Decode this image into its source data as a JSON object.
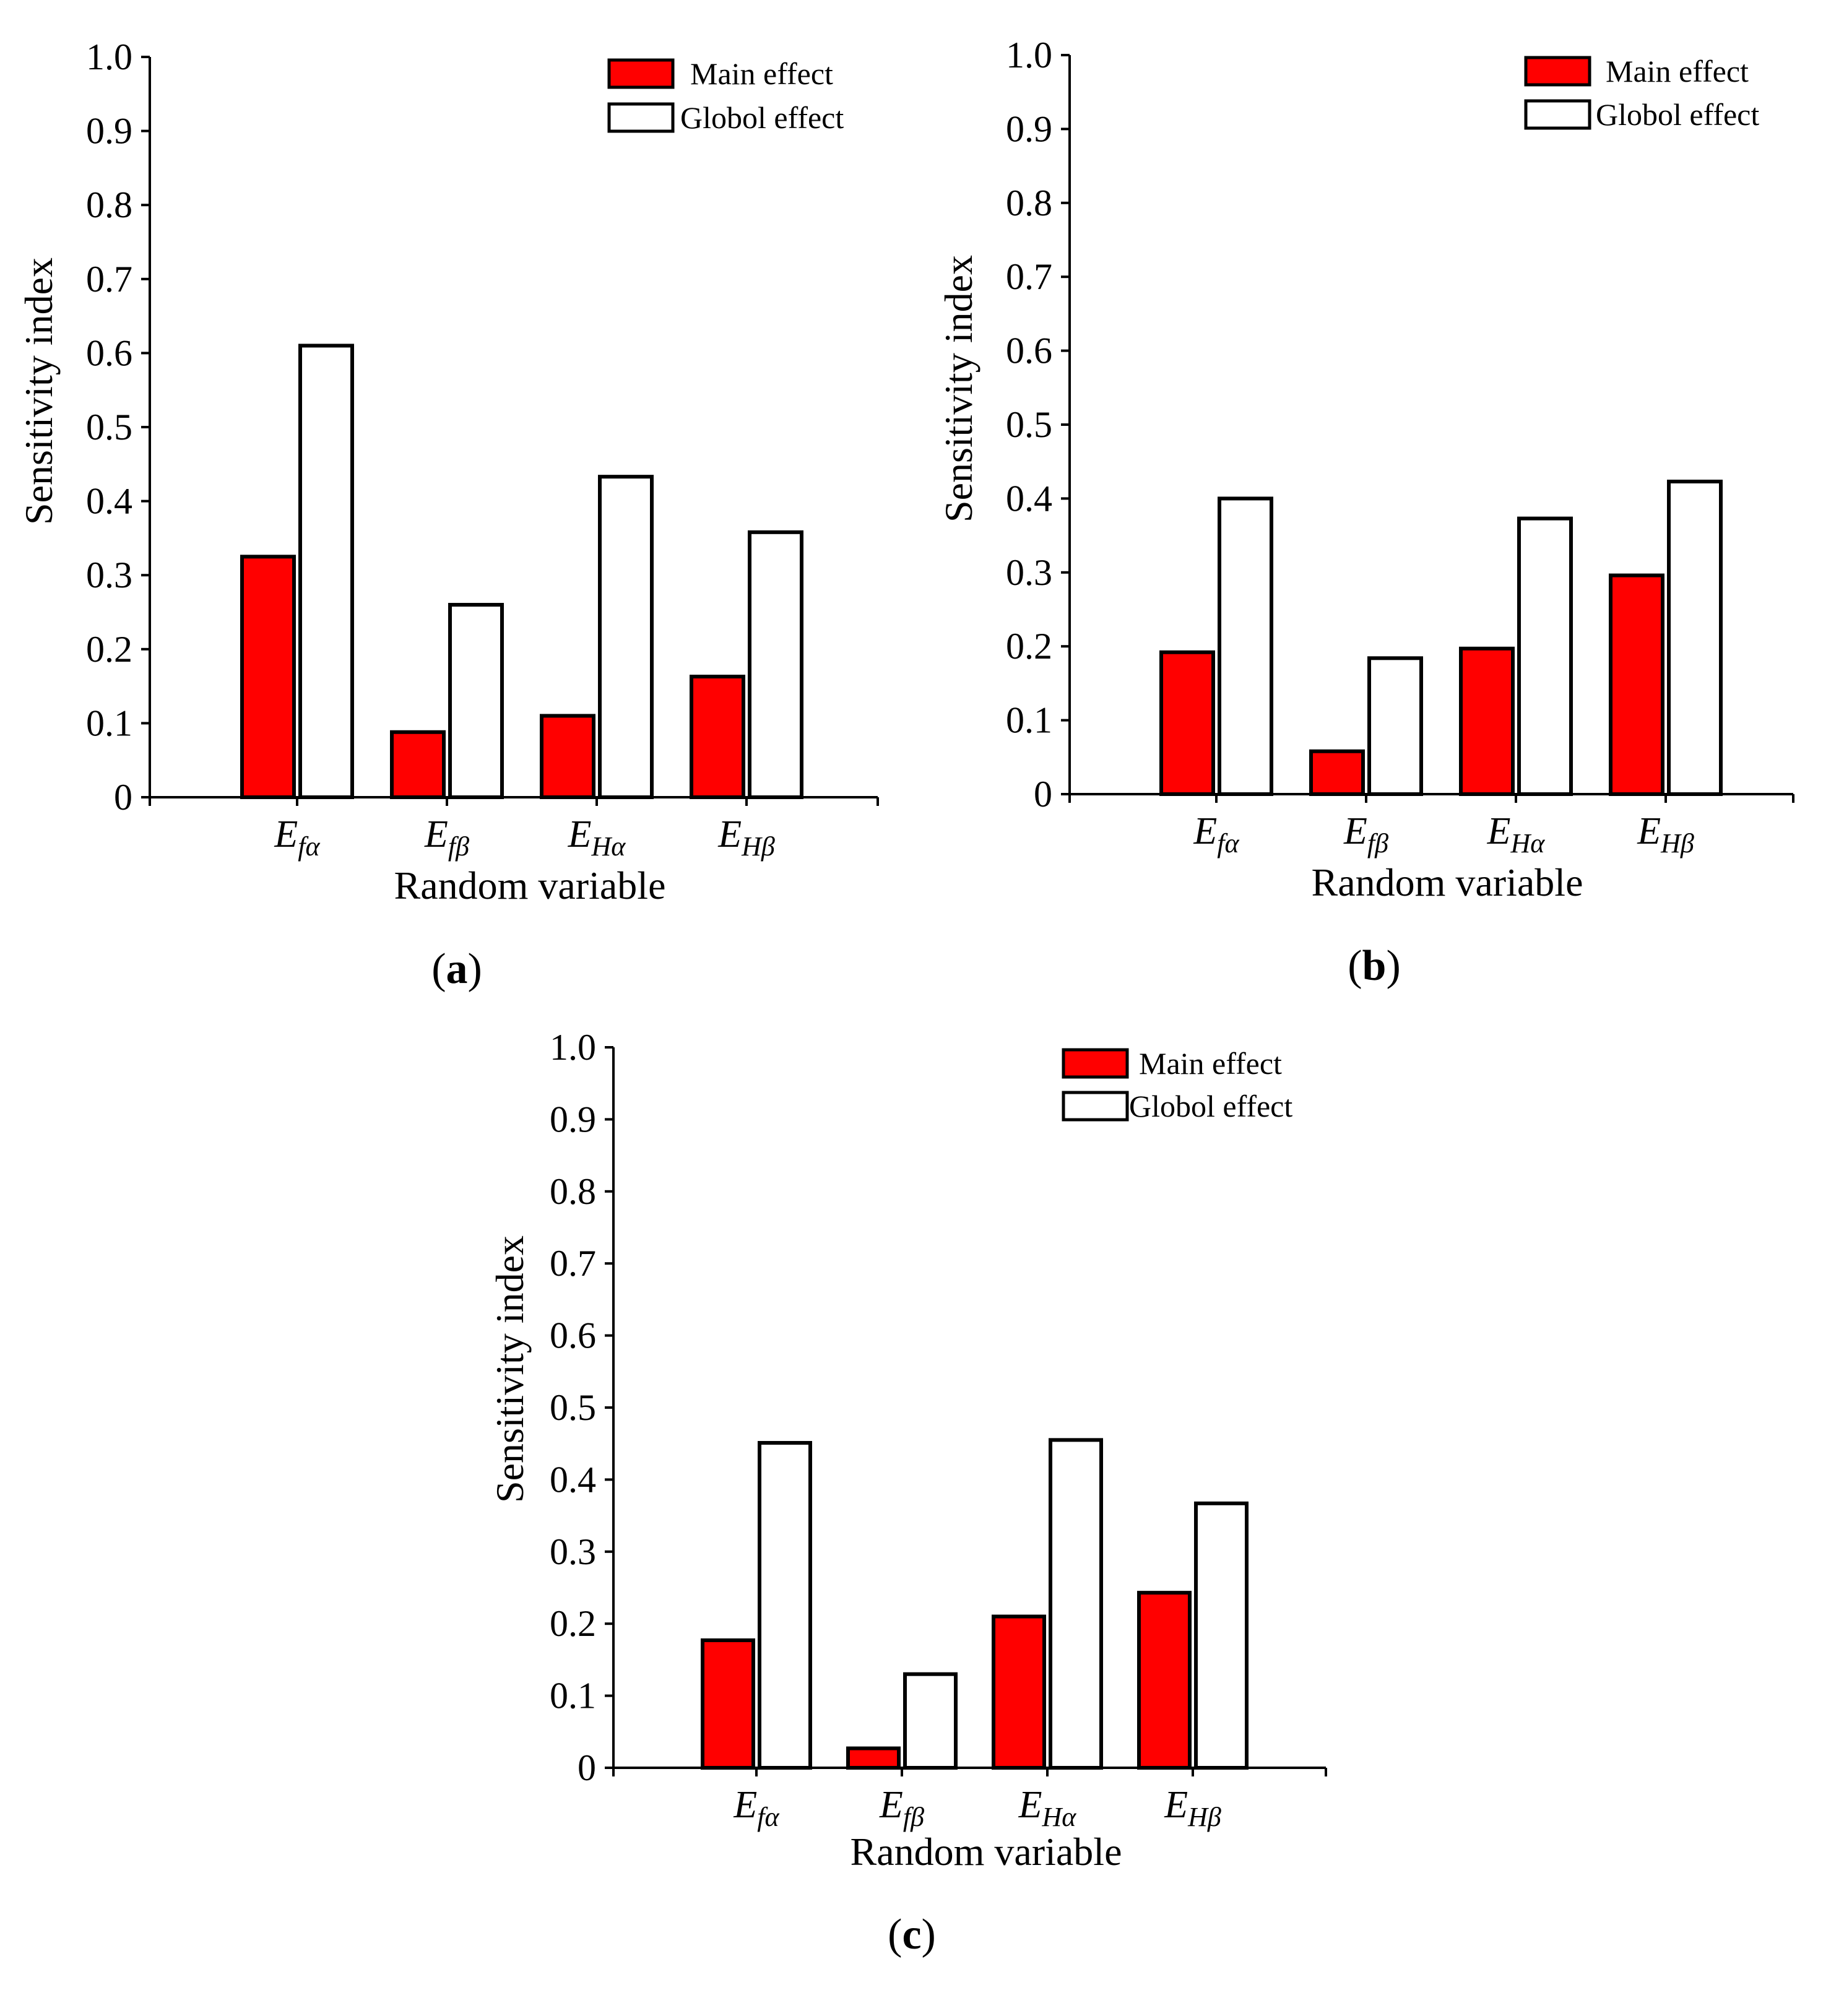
{
  "figure": {
    "panel_labels": [
      {
        "open": "(",
        "letter": "a",
        "close": ")"
      },
      {
        "open": "(",
        "letter": "b",
        "close": ")"
      },
      {
        "open": "(",
        "letter": "c",
        "close": ")"
      }
    ]
  },
  "colors": {
    "main_effect": "#ff0000",
    "global_effect": "#ffffff",
    "stroke": "#000000"
  },
  "chart_data": [
    {
      "type": "bar",
      "panel": "a",
      "categories": [
        {
          "base": "E",
          "sub": "fα"
        },
        {
          "base": "E",
          "sub": "fβ"
        },
        {
          "base": "E",
          "sub": "Hα"
        },
        {
          "base": "E",
          "sub": "Hβ"
        }
      ],
      "series": [
        {
          "name": "Main effect",
          "values": [
            0.325,
            0.088,
            0.11,
            0.163
          ]
        },
        {
          "name": "Globol effect",
          "values": [
            0.61,
            0.26,
            0.433,
            0.358
          ]
        }
      ],
      "xlabel": "Random variable",
      "ylabel": "Sensitivity index",
      "ylim": [
        0,
        1.0
      ],
      "yticks": [
        "0",
        "0.1",
        "0.2",
        "0.3",
        "0.4",
        "0.5",
        "0.6",
        "0.7",
        "0.8",
        "0.9",
        "1.0"
      ],
      "legend_position": "top-right"
    },
    {
      "type": "bar",
      "panel": "b",
      "categories": [
        {
          "base": "E",
          "sub": "fα"
        },
        {
          "base": "E",
          "sub": "fβ"
        },
        {
          "base": "E",
          "sub": "Hα"
        },
        {
          "base": "E",
          "sub": "Hβ"
        }
      ],
      "series": [
        {
          "name": "Main effect",
          "values": [
            0.192,
            0.058,
            0.197,
            0.296
          ]
        },
        {
          "name": "Globol effect",
          "values": [
            0.4,
            0.184,
            0.373,
            0.423
          ]
        }
      ],
      "xlabel": "Random variable",
      "ylabel": "Sensitivity index",
      "ylim": [
        0,
        1.0
      ],
      "yticks": [
        "0",
        "0.1",
        "0.2",
        "0.3",
        "0.4",
        "0.5",
        "0.6",
        "0.7",
        "0.8",
        "0.9",
        "1.0"
      ],
      "legend_position": "top-right"
    },
    {
      "type": "bar",
      "panel": "c",
      "categories": [
        {
          "base": "E",
          "sub": "fα"
        },
        {
          "base": "E",
          "sub": "fβ"
        },
        {
          "base": "E",
          "sub": "Hα"
        },
        {
          "base": "E",
          "sub": "Hβ"
        }
      ],
      "series": [
        {
          "name": "Main effect",
          "values": [
            0.177,
            0.027,
            0.21,
            0.243
          ]
        },
        {
          "name": "Globol effect",
          "values": [
            0.451,
            0.13,
            0.455,
            0.367
          ]
        }
      ],
      "xlabel": "Random variable",
      "ylabel": "Sensitivity index",
      "ylim": [
        0,
        1.0
      ],
      "yticks": [
        "0",
        "0.1",
        "0.2",
        "0.3",
        "0.4",
        "0.5",
        "0.6",
        "0.7",
        "0.8",
        "0.9",
        "1.0"
      ],
      "legend_position": "top-right"
    }
  ]
}
